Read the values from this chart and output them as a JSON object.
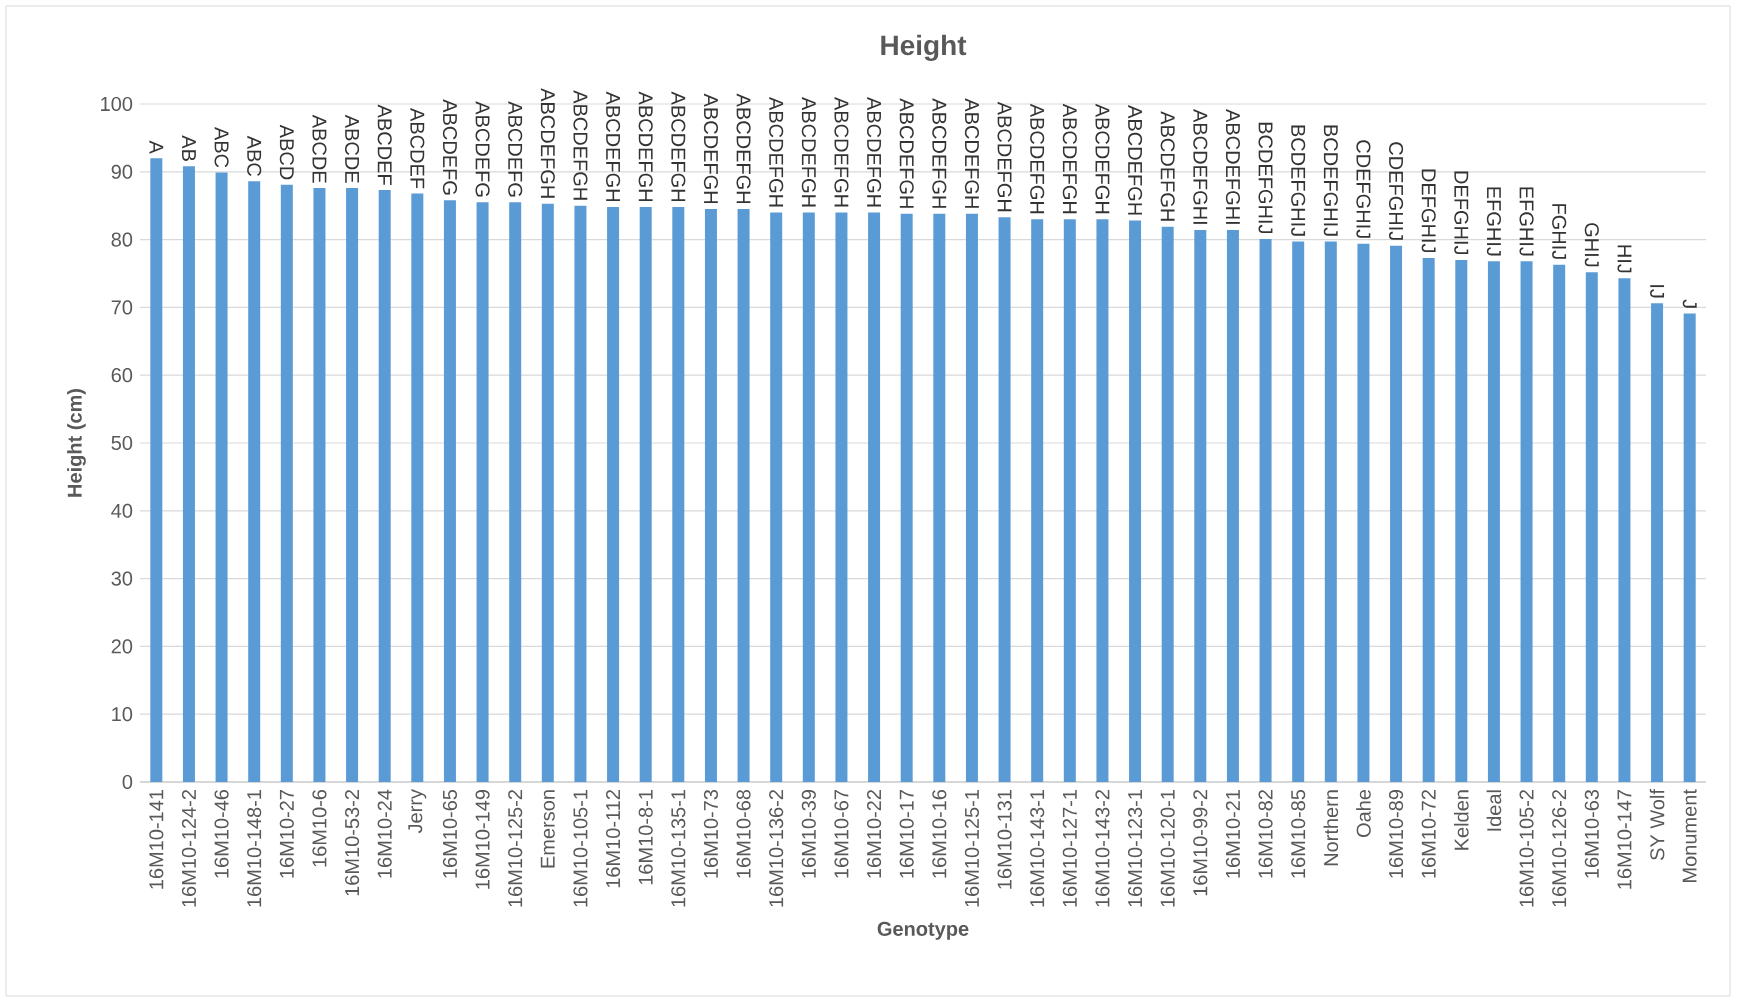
{
  "chart_data": {
    "type": "bar",
    "title": "Height",
    "xlabel": "Genotype",
    "ylabel": "Height (cm)",
    "categories": [
      "16M10-141",
      "16M10-124-2",
      "16M10-46",
      "16M10-148-1",
      "16M10-27",
      "16M10-6",
      "16M10-53-2",
      "16M10-24",
      "Jerry",
      "16M10-65",
      "16M10-149",
      "16M10-125-2",
      "Emerson",
      "16M10-105-1",
      "16M10-112",
      "16M10-8-1",
      "16M10-135-1",
      "16M10-73",
      "16M10-68",
      "16M10-136-2",
      "16M10-39",
      "16M10-67",
      "16M10-22",
      "16M10-17",
      "16M10-16",
      "16M10-125-1",
      "16M10-131",
      "16M10-143-1",
      "16M10-127-1",
      "16M10-143-2",
      "16M10-123-1",
      "16M10-120-1",
      "16M10-99-2",
      "16M10-21",
      "16M10-82",
      "16M10-85",
      "Northern",
      "Oahe",
      "16M10-89",
      "16M10-72",
      "Kelden",
      "Ideal",
      "16M10-105-2",
      "16M10-126-2",
      "16M10-63",
      "16M10-147",
      "SY Wolf",
      "Monument"
    ],
    "values": [
      92.0,
      90.8,
      89.9,
      88.6,
      88.1,
      87.6,
      87.6,
      87.3,
      86.8,
      85.8,
      85.5,
      85.5,
      85.3,
      85.0,
      84.8,
      84.8,
      84.8,
      84.5,
      84.5,
      84.0,
      84.0,
      84.0,
      84.0,
      83.8,
      83.8,
      83.8,
      83.3,
      83.0,
      83.0,
      83.0,
      82.8,
      81.9,
      81.4,
      81.4,
      80.1,
      79.7,
      79.7,
      79.4,
      79.1,
      77.3,
      77.0,
      76.8,
      76.8,
      76.3,
      75.2,
      74.3,
      70.6,
      69.1
    ],
    "value_labels": [
      "A",
      "AB",
      "ABC",
      "ABC",
      "ABCD",
      "ABCDE",
      "ABCDE",
      "ABCDEF",
      "ABCDEF",
      "ABCDEFG",
      "ABCDEFG",
      "ABCDEFG",
      "ABCDEFGH",
      "ABCDEFGH",
      "ABCDEFGH",
      "ABCDEFGH",
      "ABCDEFGH",
      "ABCDEFGH",
      "ABCDEFGH",
      "ABCDEFGH",
      "ABCDEFGH",
      "ABCDEFGH",
      "ABCDEFGH",
      "ABCDEFGH",
      "ABCDEFGH",
      "ABCDEFGH",
      "ABCDEFGH",
      "ABCDEFGH",
      "ABCDEFGH",
      "ABCDEFGH",
      "ABCDEFGH",
      "ABCDEFGH",
      "ABCDEFGHI",
      "ABCDEFGHI",
      "BCDEFGHIJ",
      "BCDEFGHIJ",
      "BCDEFGHIJ",
      "CDEFGHIJ",
      "CDEFGHIJ",
      "DEFGHIJ",
      "DEFGHIJ",
      "EFGHIJ",
      "EFGHIJ",
      "FGHIJ",
      "GHIJ",
      "HIJ",
      "IJ",
      "J"
    ],
    "color": "#5b9bd5",
    "ylim": [
      0,
      100
    ],
    "yticks": [
      0,
      10,
      20,
      30,
      40,
      50,
      60,
      70,
      80,
      90,
      100
    ],
    "grid": "y"
  }
}
